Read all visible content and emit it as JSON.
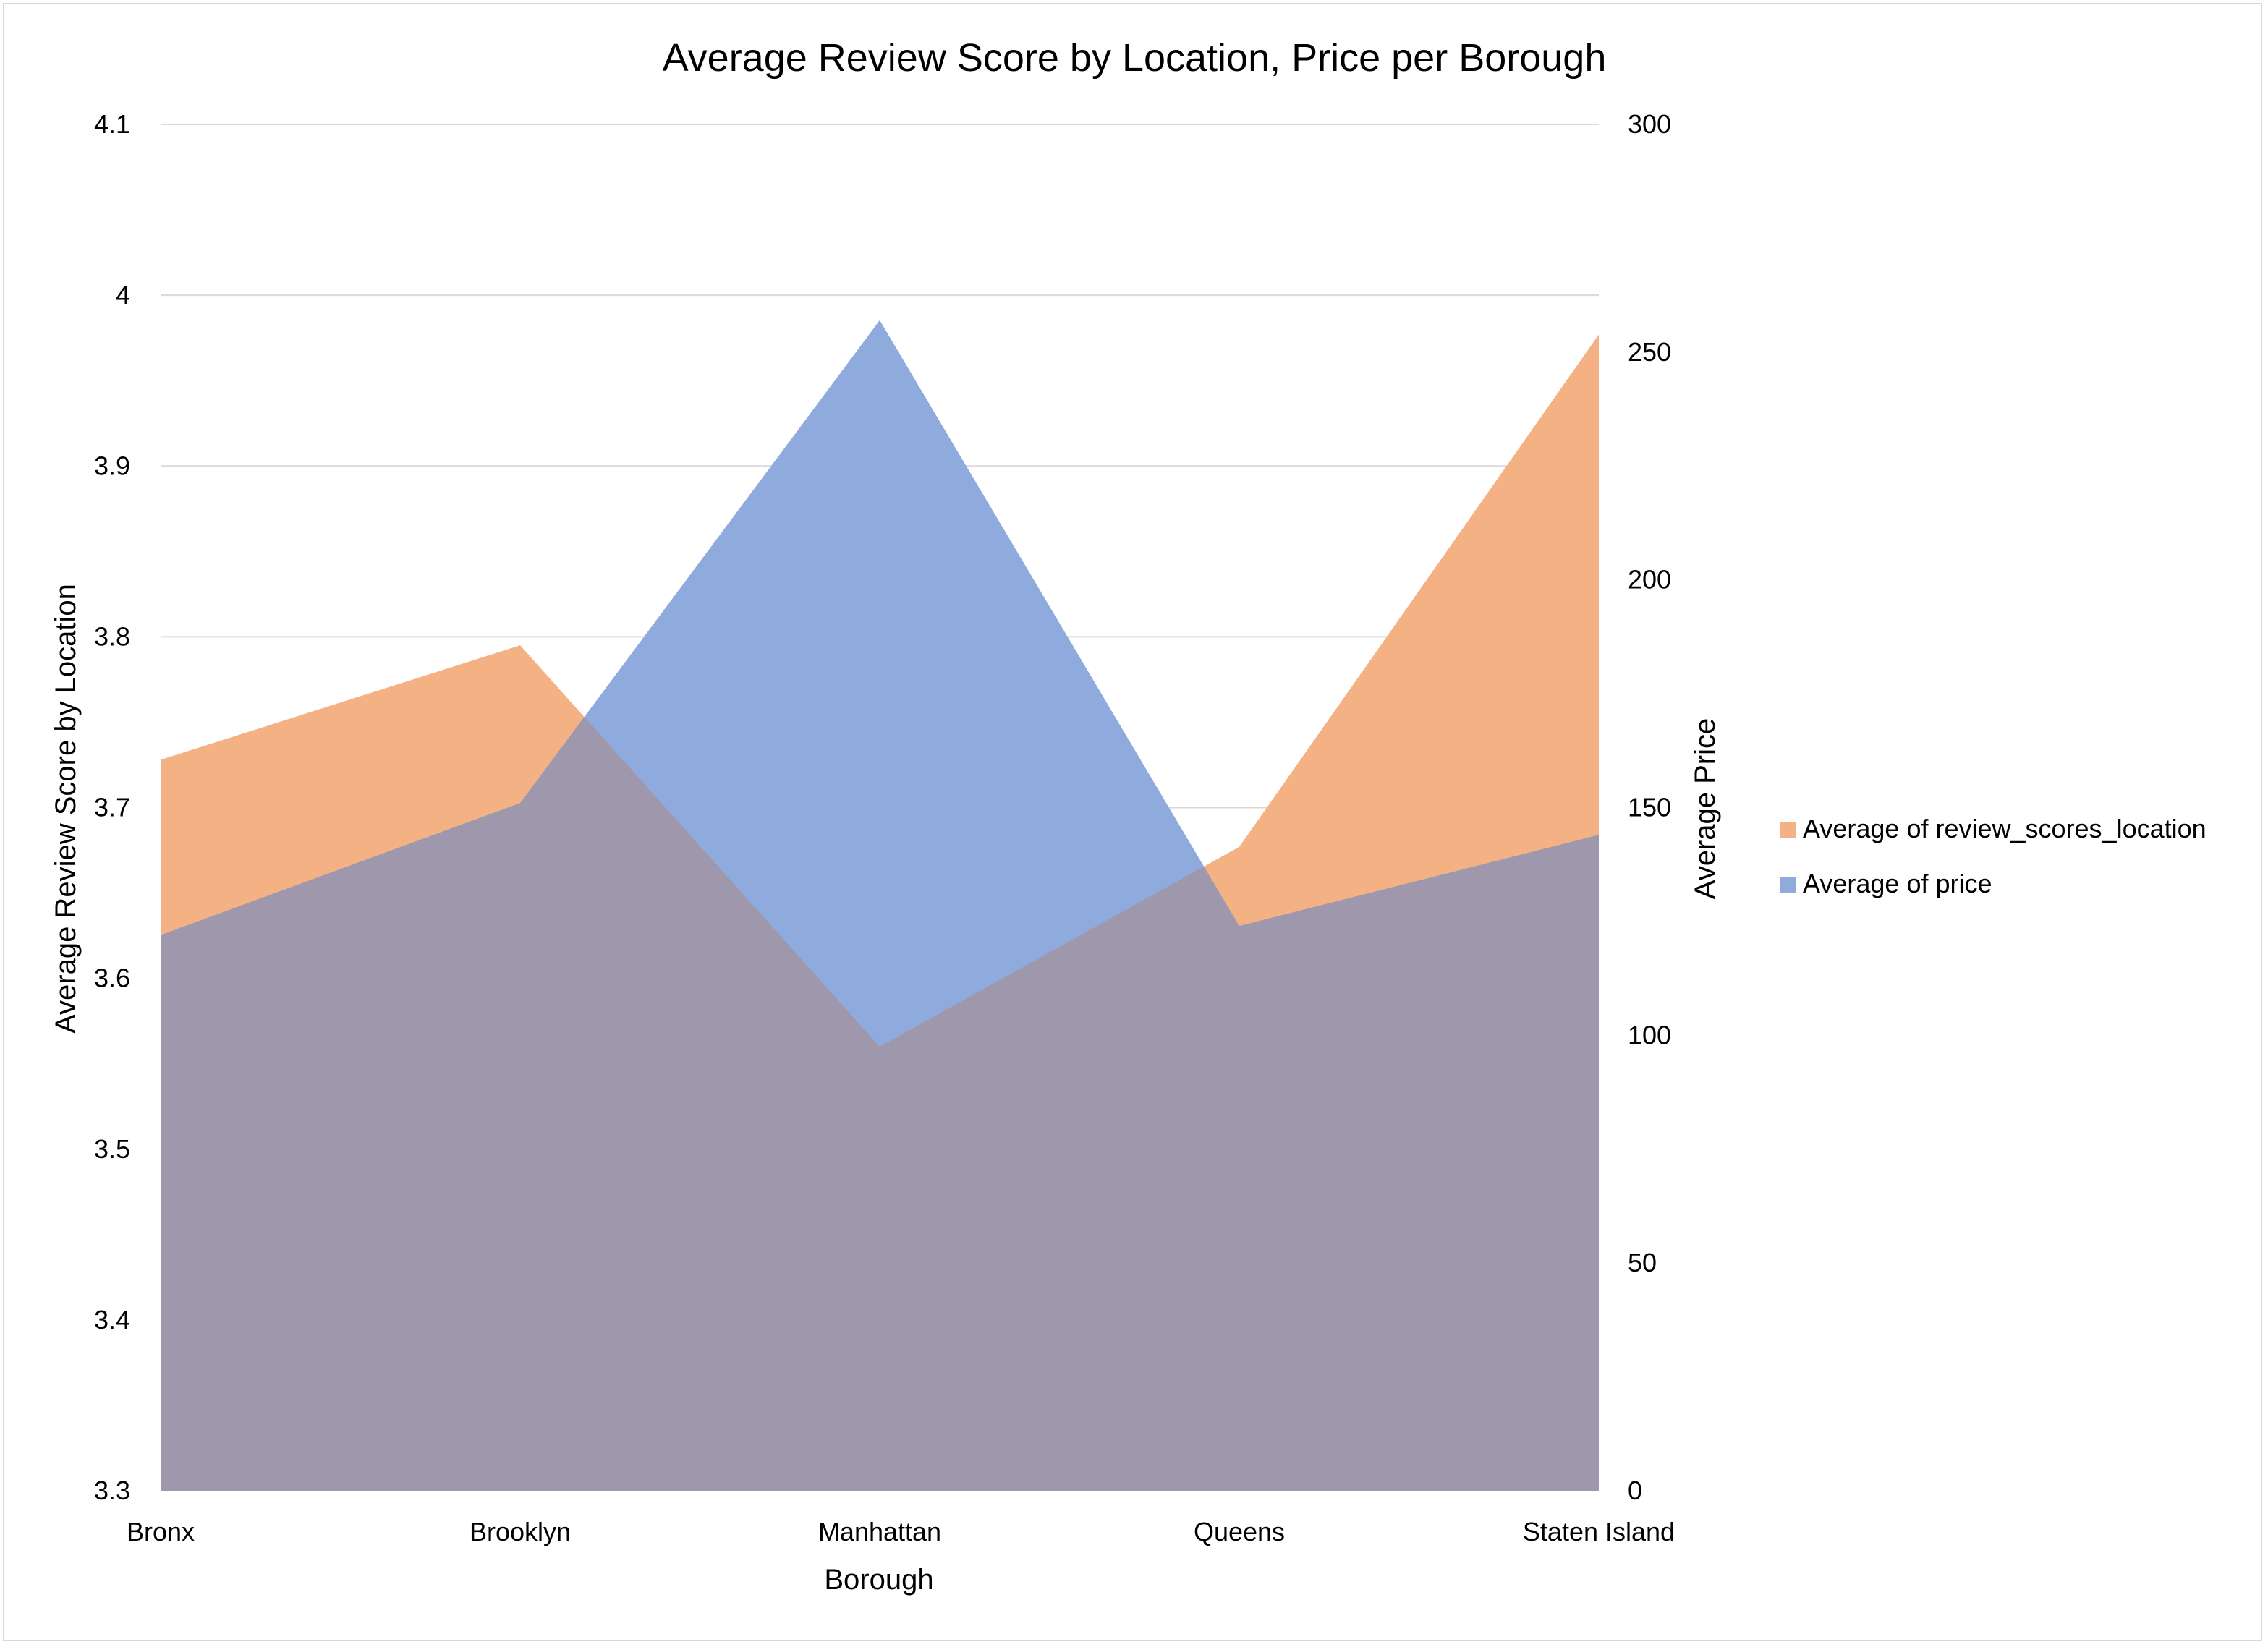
{
  "chart_data": {
    "type": "area",
    "title": "Average Review Score by Location, Price per Borough",
    "xlabel": "Borough",
    "ylabel": "Average Review Score by Location",
    "y2label": "Average Price",
    "categories": [
      "Bronx",
      "Brooklyn",
      "Manhattan",
      "Queens",
      "Staten Island"
    ],
    "ylim": [
      3.3,
      4.1
    ],
    "y2lim": [
      0,
      300
    ],
    "yticks": [
      "3.3",
      "3.4",
      "3.5",
      "3.6",
      "3.7",
      "3.8",
      "3.9",
      "4",
      "4.1"
    ],
    "y2ticks": [
      "0",
      "50",
      "100",
      "150",
      "200",
      "250",
      "300"
    ],
    "grid": true,
    "legend_position": "right",
    "series": [
      {
        "name": "Average of review_scores_location",
        "axis": "left",
        "color": "#f4b183",
        "values": [
          3.728,
          3.795,
          3.56,
          3.677,
          3.977
        ]
      },
      {
        "name": "Average of price",
        "axis": "right",
        "color": "#8faadc",
        "values": [
          122,
          151,
          257,
          124,
          144
        ]
      }
    ],
    "overlap_color": "#9f98ad"
  }
}
